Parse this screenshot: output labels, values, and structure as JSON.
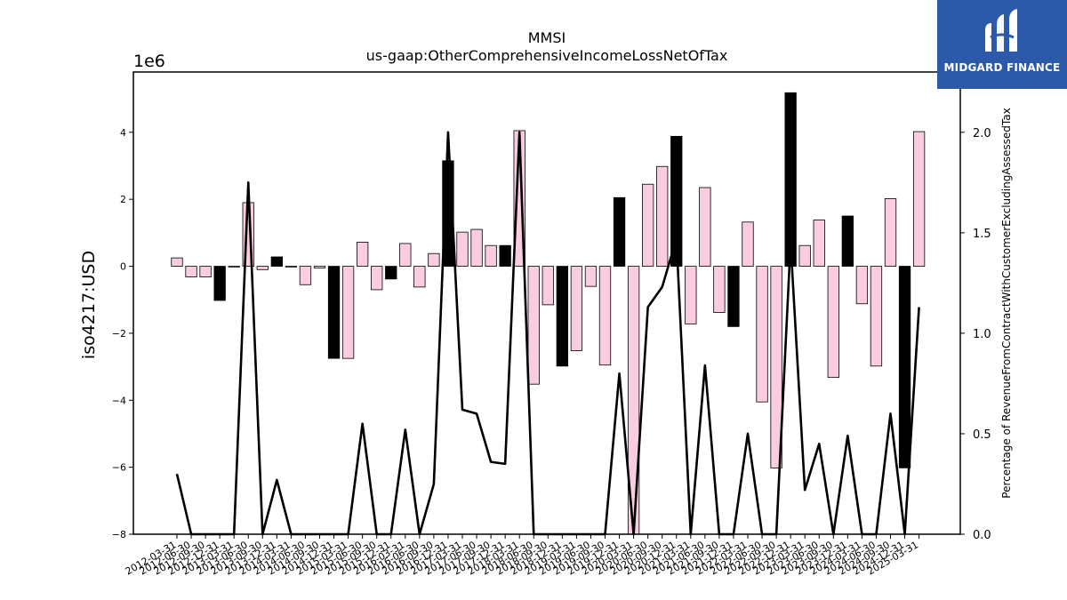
{
  "chart_data": {
    "type": "bar",
    "title": "MMSI",
    "subtitle": "us-gaap:OtherComprehensiveIncomeLossNetOfTax",
    "ylabel": "iso4217:USD",
    "y2label": "Percentage of RevenueFromContractWithCustomerExcludingAssessedTax",
    "y_offset_text": "1e6",
    "ylim": [
      -8,
      5.8
    ],
    "y2lim": [
      0.0,
      2.3
    ],
    "yticks": [
      "4",
      "2",
      "0",
      "−2",
      "−4",
      "−6",
      "−8"
    ],
    "y2ticks": [
      "2.0",
      "1.5",
      "1.0",
      "0.5",
      "0.0"
    ],
    "categories": [
      "2012-03-31",
      "2012-06-30",
      "2012-09-30",
      "2012-12-31",
      "2013-03-31",
      "2013-06-30",
      "2013-09-30",
      "2013-12-31",
      "2014-03-31",
      "2014-06-30",
      "2014-09-30",
      "2014-12-31",
      "2015-03-31",
      "2015-06-30",
      "2015-09-30",
      "2015-12-31",
      "2016-03-31",
      "2016-06-30",
      "2016-09-30",
      "2016-12-31",
      "2017-03-31",
      "2017-06-30",
      "2017-09-30",
      "2017-12-31",
      "2018-03-31",
      "2018-06-30",
      "2018-09-30",
      "2018-12-31",
      "2019-03-31",
      "2019-06-30",
      "2019-09-30",
      "2019-12-31",
      "2020-03-31",
      "2020-06-30",
      "2020-09-30",
      "2020-12-31",
      "2021-03-31",
      "2021-06-30",
      "2021-09-30",
      "2021-12-31",
      "2022-03-31",
      "2022-06-30",
      "2022-09-30",
      "2022-12-31",
      "2023-03-31",
      "2023-06-30",
      "2023-09-30",
      "2023-12-31",
      "2024-03-31",
      "2024-06-30",
      "2024-09-30",
      "2024-12-31",
      "2025-03-31"
    ],
    "bar_colors": {
      "quarter": "#f9cce0",
      "annual": "#000000",
      "edge": "#000000"
    },
    "bars": [
      0.25,
      -0.32,
      -0.32,
      -1.02,
      -0.02,
      1.9,
      -0.1,
      0.28,
      -0.02,
      -0.55,
      -0.05,
      -2.75,
      -2.75,
      0.72,
      -0.7,
      -0.38,
      0.68,
      -0.62,
      0.38,
      3.15,
      1.02,
      1.1,
      0.62,
      0.62,
      4.05,
      -3.52,
      -1.15,
      -2.98,
      -2.52,
      -0.6,
      -2.95,
      2.05,
      -8.5,
      2.45,
      2.98,
      3.88,
      -1.72,
      2.35,
      -1.38,
      -1.8,
      1.32,
      -4.05,
      -6.02,
      5.18,
      0.62,
      1.38,
      -3.32,
      1.5,
      -1.12,
      -2.98,
      2.02,
      -6.02,
      4.02
    ],
    "bar_types": [
      "q",
      "q",
      "q",
      "a",
      "q",
      "q",
      "q",
      "a",
      "q",
      "q",
      "q",
      "a",
      "q",
      "q",
      "q",
      "a",
      "q",
      "q",
      "q",
      "a",
      "q",
      "q",
      "q",
      "a",
      "q",
      "q",
      "q",
      "a",
      "q",
      "q",
      "q",
      "a",
      "q",
      "q",
      "q",
      "a",
      "q",
      "q",
      "q",
      "a",
      "q",
      "q",
      "q",
      "a",
      "q",
      "q",
      "q",
      "a",
      "q",
      "q",
      "q",
      "a",
      "q"
    ],
    "line_series": {
      "name": "Percentage of RevenueFromContractWithCustomerExcludingAssessedTax",
      "color": "#000000",
      "values": [
        0.3,
        0.0,
        0.0,
        0.0,
        0.0,
        1.75,
        0.0,
        0.27,
        0.0,
        0.0,
        0.0,
        0.0,
        0.0,
        0.55,
        0.0,
        0.0,
        0.52,
        0.0,
        0.25,
        2.0,
        0.62,
        0.6,
        0.36,
        0.35,
        2.0,
        0.0,
        0.0,
        0.0,
        0.0,
        0.0,
        0.0,
        0.8,
        0.0,
        1.13,
        1.23,
        1.47,
        0.0,
        0.84,
        0.0,
        0.0,
        0.5,
        0.0,
        0.0,
        1.45,
        0.22,
        0.45,
        0.0,
        0.49,
        0.0,
        0.0,
        0.6,
        0.0,
        1.13
      ]
    }
  },
  "logo": {
    "text": "MIDGARD FINANCE"
  }
}
